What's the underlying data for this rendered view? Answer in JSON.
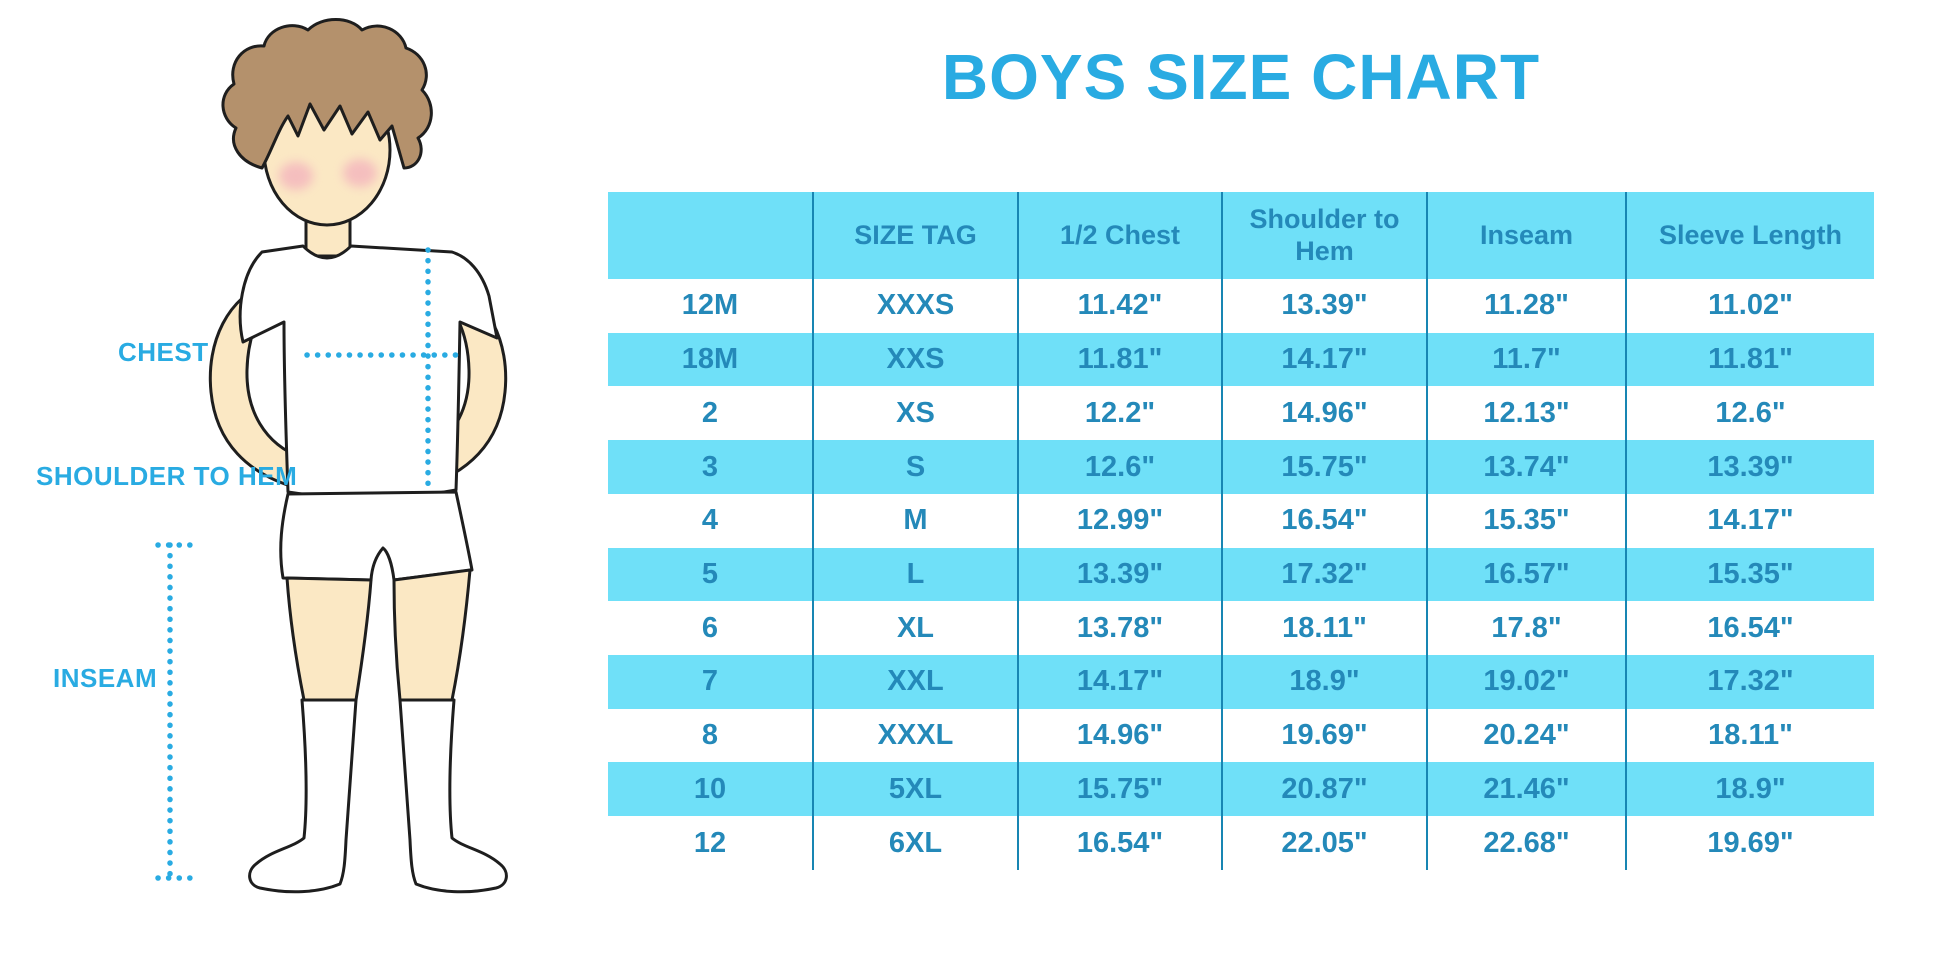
{
  "title": "BOYS SIZE CHART",
  "diagram": {
    "labels": {
      "chest": "CHEST",
      "shoulder_to_hem": "SHOULDER TO HEM",
      "inseam": "INSEAM"
    }
  },
  "colors": {
    "accent_blue": "#29abe2",
    "table_row_blue": "#6fe0f8",
    "table_text_blue": "#2489b9",
    "table_line_blue": "#1886b3",
    "skin": "#fbe8c4",
    "hair": "#b4916c",
    "cheek": "#f2a9bc"
  },
  "chart_data": {
    "type": "table",
    "title": "BOYS SIZE CHART",
    "columns": [
      "",
      "SIZE TAG",
      "1/2 Chest",
      "Shoulder to Hem",
      "Inseam",
      "Sleeve Length"
    ],
    "rows": [
      [
        "12M",
        "XXXS",
        "11.42\"",
        "13.39\"",
        "11.28\"",
        "11.02\""
      ],
      [
        "18M",
        "XXS",
        "11.81\"",
        "14.17\"",
        "11.7\"",
        "11.81\""
      ],
      [
        "2",
        "XS",
        "12.2\"",
        "14.96\"",
        "12.13\"",
        "12.6\""
      ],
      [
        "3",
        "S",
        "12.6\"",
        "15.75\"",
        "13.74\"",
        "13.39\""
      ],
      [
        "4",
        "M",
        "12.99\"",
        "16.54\"",
        "15.35\"",
        "14.17\""
      ],
      [
        "5",
        "L",
        "13.39\"",
        "17.32\"",
        "16.57\"",
        "15.35\""
      ],
      [
        "6",
        "XL",
        "13.78\"",
        "18.11\"",
        "17.8\"",
        "16.54\""
      ],
      [
        "7",
        "XXL",
        "14.17\"",
        "18.9\"",
        "19.02\"",
        "17.32\""
      ],
      [
        "8",
        "XXXL",
        "14.96\"",
        "19.69\"",
        "20.24\"",
        "18.11\""
      ],
      [
        "10",
        "5XL",
        "15.75\"",
        "20.87\"",
        "21.46\"",
        "18.9\""
      ],
      [
        "12",
        "6XL",
        "16.54\"",
        "22.05\"",
        "22.68\"",
        "19.69\""
      ]
    ],
    "units": "inches",
    "row_striping": "white / light-blue alternating, header light-blue"
  }
}
